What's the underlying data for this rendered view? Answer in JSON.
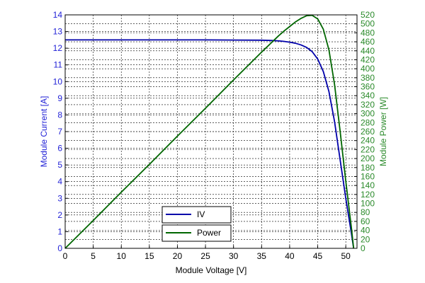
{
  "chart_data": {
    "type": "line",
    "xlabel": "Module Voltage [V]",
    "ylabel_left": "Module Current [A]",
    "ylabel_right": "Module Power [W]",
    "xlim": [
      0,
      52
    ],
    "ylim_left": [
      0,
      14
    ],
    "ylim_right": [
      0,
      520
    ],
    "x_ticks": [
      0,
      5,
      10,
      15,
      20,
      25,
      30,
      35,
      40,
      45,
      50
    ],
    "y_left_ticks": [
      0,
      1,
      2,
      3,
      4,
      5,
      6,
      7,
      8,
      9,
      10,
      11,
      12,
      13,
      14
    ],
    "y_right_ticks": [
      0,
      20,
      40,
      60,
      80,
      100,
      120,
      140,
      160,
      180,
      200,
      220,
      240,
      260,
      280,
      300,
      320,
      340,
      360,
      380,
      400,
      420,
      440,
      460,
      480,
      500,
      520
    ],
    "grid": true,
    "legend_position": "bottom-center",
    "series": [
      {
        "name": "IV",
        "color": "#0000aa",
        "axis": "left",
        "x": [
          0,
          5,
          10,
          15,
          20,
          25,
          30,
          35,
          37,
          38,
          39,
          40,
          41,
          42,
          43,
          44,
          45,
          46,
          47,
          48,
          49,
          50,
          51,
          51.4
        ],
        "y": [
          12.5,
          12.5,
          12.5,
          12.5,
          12.5,
          12.5,
          12.49,
          12.48,
          12.46,
          12.44,
          12.41,
          12.36,
          12.3,
          12.2,
          12.05,
          11.8,
          11.35,
          10.6,
          9.4,
          7.6,
          5.3,
          3.0,
          0.9,
          0
        ]
      },
      {
        "name": "Power",
        "color": "#006600",
        "axis": "right",
        "x": [
          0,
          5,
          10,
          15,
          20,
          25,
          30,
          35,
          37,
          38,
          39,
          40,
          41,
          42,
          43,
          44,
          45,
          46,
          47,
          48,
          49,
          50,
          51,
          51.4
        ],
        "y": [
          0,
          62,
          125,
          187,
          250,
          312,
          375,
          437,
          461,
          473,
          484,
          494,
          504,
          512,
          518,
          519,
          511,
          488,
          442,
          365,
          260,
          150,
          46,
          0
        ]
      }
    ]
  }
}
